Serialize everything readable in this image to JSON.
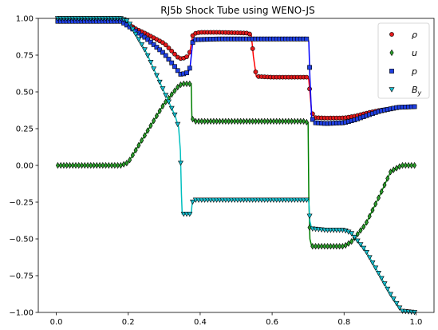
{
  "chart_data": {
    "type": "line",
    "title": "RJ5b Shock Tube using WENO-JS",
    "xlabel": "",
    "ylabel": "",
    "xlim": [
      -0.05,
      1.05
    ],
    "ylim": [
      -1.0,
      1.0
    ],
    "x_ticks": [
      "0.0",
      "0.2",
      "0.4",
      "0.6",
      "0.8",
      "1.0"
    ],
    "y_ticks": [
      "1.00",
      "0.75",
      "0.50",
      "0.25",
      "0.00",
      "−0.25",
      "−0.50",
      "−0.75",
      "−1.00"
    ],
    "grid": false,
    "legend_position": "top-right",
    "marker_count": 120,
    "series": [
      {
        "name": "ρ",
        "color": "#e31a1c",
        "line_color": "#ff0000",
        "marker": "circle",
        "points": [
          [
            0.0,
            1.0
          ],
          [
            0.18,
            1.0
          ],
          [
            0.205,
            0.955
          ],
          [
            0.22,
            0.93
          ],
          [
            0.25,
            0.895
          ],
          [
            0.3,
            0.83
          ],
          [
            0.34,
            0.73
          ],
          [
            0.35,
            0.725
          ],
          [
            0.368,
            0.745
          ],
          [
            0.372,
            0.78
          ],
          [
            0.38,
            0.895
          ],
          [
            0.4,
            0.905
          ],
          [
            0.45,
            0.905
          ],
          [
            0.5,
            0.902
          ],
          [
            0.53,
            0.9
          ],
          [
            0.542,
            0.89
          ],
          [
            0.548,
            0.74
          ],
          [
            0.556,
            0.605
          ],
          [
            0.6,
            0.6
          ],
          [
            0.65,
            0.6
          ],
          [
            0.7,
            0.6
          ],
          [
            0.702,
            0.58
          ],
          [
            0.71,
            0.36
          ],
          [
            0.72,
            0.325
          ],
          [
            0.75,
            0.322
          ],
          [
            0.8,
            0.323
          ],
          [
            0.83,
            0.335
          ],
          [
            0.87,
            0.36
          ],
          [
            0.9,
            0.375
          ],
          [
            0.93,
            0.385
          ],
          [
            0.95,
            0.395
          ],
          [
            1.0,
            0.4
          ]
        ]
      },
      {
        "name": "u",
        "color": "#2ca02c",
        "line_color": "#008000",
        "marker": "diamond",
        "points": [
          [
            0.0,
            0.0
          ],
          [
            0.18,
            0.0
          ],
          [
            0.2,
            0.02
          ],
          [
            0.3,
            0.42
          ],
          [
            0.34,
            0.54
          ],
          [
            0.35,
            0.555
          ],
          [
            0.375,
            0.555
          ],
          [
            0.377,
            0.32
          ],
          [
            0.385,
            0.3
          ],
          [
            0.5,
            0.3
          ],
          [
            0.6,
            0.3
          ],
          [
            0.69,
            0.3
          ],
          [
            0.7,
            0.29
          ],
          [
            0.702,
            -0.22
          ],
          [
            0.705,
            -0.5
          ],
          [
            0.71,
            -0.55
          ],
          [
            0.75,
            -0.55
          ],
          [
            0.8,
            -0.55
          ],
          [
            0.82,
            -0.52
          ],
          [
            0.86,
            -0.4
          ],
          [
            0.9,
            -0.2
          ],
          [
            0.93,
            -0.04
          ],
          [
            0.96,
            0.0
          ],
          [
            1.0,
            0.0
          ]
        ]
      },
      {
        "name": "p",
        "color": "#1f3fe0",
        "line_color": "#0000ff",
        "marker": "square",
        "points": [
          [
            0.0,
            0.98
          ],
          [
            0.18,
            0.98
          ],
          [
            0.205,
            0.94
          ],
          [
            0.22,
            0.915
          ],
          [
            0.25,
            0.865
          ],
          [
            0.3,
            0.76
          ],
          [
            0.33,
            0.67
          ],
          [
            0.345,
            0.62
          ],
          [
            0.36,
            0.625
          ],
          [
            0.368,
            0.64
          ],
          [
            0.372,
            0.67
          ],
          [
            0.38,
            0.855
          ],
          [
            0.45,
            0.86
          ],
          [
            0.6,
            0.86
          ],
          [
            0.7,
            0.86
          ],
          [
            0.702,
            0.84
          ],
          [
            0.705,
            0.6
          ],
          [
            0.71,
            0.32
          ],
          [
            0.72,
            0.29
          ],
          [
            0.75,
            0.285
          ],
          [
            0.8,
            0.29
          ],
          [
            0.83,
            0.31
          ],
          [
            0.87,
            0.345
          ],
          [
            0.9,
            0.37
          ],
          [
            0.93,
            0.385
          ],
          [
            0.95,
            0.395
          ],
          [
            1.0,
            0.4
          ]
        ]
      },
      {
        "name": "B_y",
        "color": "#17becf",
        "line_color": "#00bfbf",
        "marker": "triangle-down",
        "points": [
          [
            0.0,
            1.0
          ],
          [
            0.18,
            1.0
          ],
          [
            0.2,
            0.98
          ],
          [
            0.25,
            0.77
          ],
          [
            0.3,
            0.5
          ],
          [
            0.33,
            0.34
          ],
          [
            0.34,
            0.26
          ],
          [
            0.345,
            0.1
          ],
          [
            0.348,
            -0.2
          ],
          [
            0.35,
            -0.33
          ],
          [
            0.375,
            -0.33
          ],
          [
            0.378,
            -0.25
          ],
          [
            0.385,
            -0.235
          ],
          [
            0.5,
            -0.235
          ],
          [
            0.6,
            -0.235
          ],
          [
            0.7,
            -0.235
          ],
          [
            0.702,
            -0.25
          ],
          [
            0.705,
            -0.38
          ],
          [
            0.71,
            -0.43
          ],
          [
            0.75,
            -0.44
          ],
          [
            0.8,
            -0.44
          ],
          [
            0.82,
            -0.46
          ],
          [
            0.86,
            -0.58
          ],
          [
            0.9,
            -0.75
          ],
          [
            0.93,
            -0.88
          ],
          [
            0.96,
            -0.99
          ],
          [
            1.0,
            -1.0
          ]
        ]
      }
    ]
  }
}
